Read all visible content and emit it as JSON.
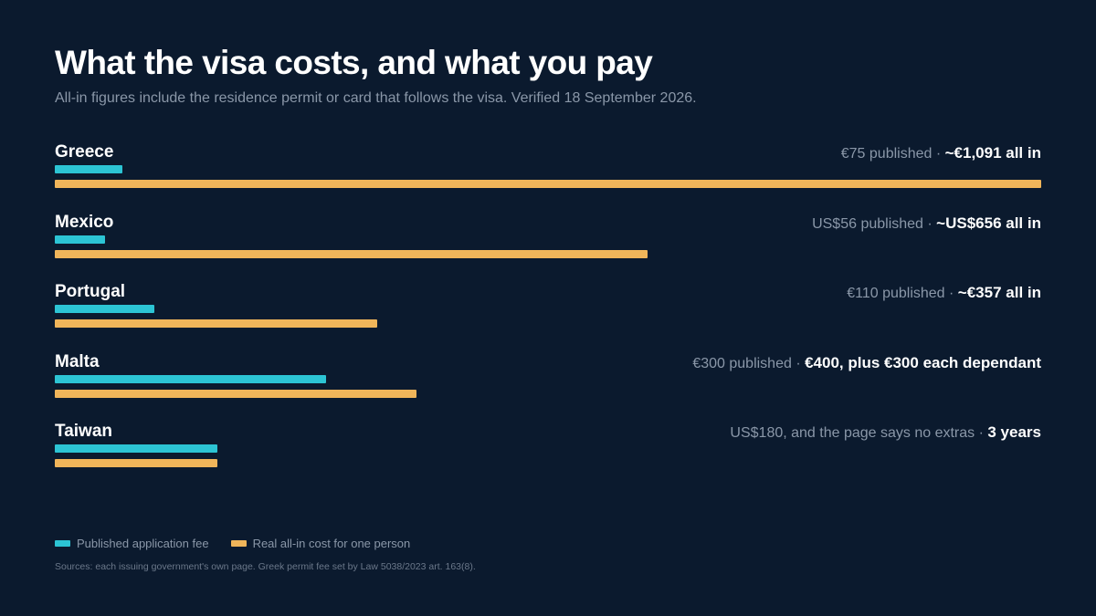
{
  "title": "What the visa costs, and what you pay",
  "subtitle": "All-in figures include the residence permit or card that follows the visa. Verified 18 September 2026.",
  "legend": {
    "published": "Published application fee",
    "real": "Real all-in cost for one person"
  },
  "sources": "Sources: each issuing government's own page. Greek permit fee set by Law 5038/2023 art. 163(8).",
  "colors": {
    "background": "#0b1a2e",
    "published": "#2cc4d4",
    "real": "#f0b55a"
  },
  "chart_data": {
    "type": "bar",
    "orientation": "horizontal",
    "categories": [
      "Greece",
      "Mexico",
      "Portugal",
      "Malta",
      "Taiwan"
    ],
    "series": [
      {
        "name": "Published application fee",
        "values": [
          75,
          56,
          110,
          300,
          180
        ]
      },
      {
        "name": "Real all-in cost for one person",
        "values": [
          1091,
          656,
          357,
          400,
          180
        ]
      }
    ],
    "xlim": [
      0,
      1091
    ],
    "grid": false,
    "legend_position": "bottom-left",
    "annotations": [
      {
        "published": "€75 published",
        "real": "~€1,091 all in"
      },
      {
        "published": "US$56 published",
        "real": "~US$656 all in"
      },
      {
        "published": "€110 published",
        "real": "~€357 all in"
      },
      {
        "published": "€300 published",
        "real": "€400, plus €300 each dependant"
      },
      {
        "published": "US$180, and the page says no extras",
        "real": "3 years"
      }
    ]
  }
}
